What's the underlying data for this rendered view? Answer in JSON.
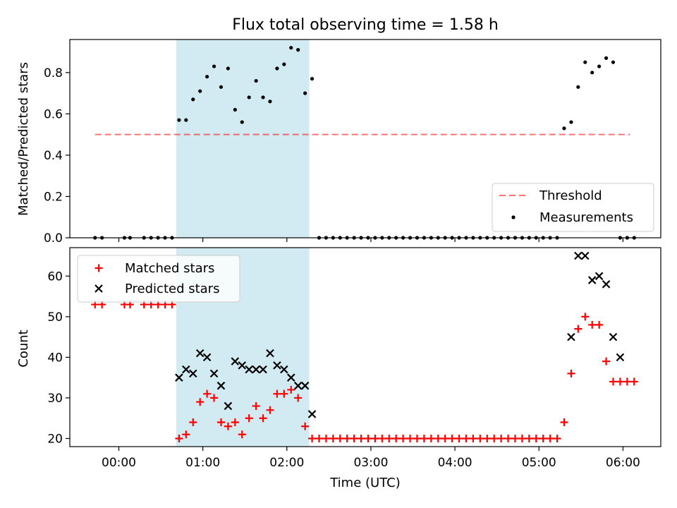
{
  "figure": {
    "title": "Flux total observing time = 1.58 h"
  },
  "colors": {
    "band": "#add8e6",
    "threshold": "#ff0000",
    "measurement": "#000000",
    "matched": "#ff0000",
    "predicted": "#000000"
  },
  "chart_data": [
    {
      "type": "scatter",
      "title": "Flux total observing time = 1.58 h",
      "xlabel": "",
      "ylabel": "Matched/Predicted stars",
      "xlim": [
        "23:25",
        "06:27"
      ],
      "ylim": [
        0,
        0.96
      ],
      "yticks": [
        0.0,
        0.2,
        0.4,
        0.6,
        0.8
      ],
      "xticks": [
        "00:00",
        "01:00",
        "02:00",
        "03:00",
        "04:00",
        "05:00",
        "06:00"
      ],
      "highlight_band": {
        "x_start": "00:41",
        "x_end": "02:16"
      },
      "legend": {
        "position": "lower-right",
        "entries": [
          "Threshold",
          "Measurements"
        ]
      },
      "grid": false,
      "series": [
        {
          "name": "Threshold",
          "style": "dashed-line",
          "x": [
            "23:43",
            "06:05"
          ],
          "y": [
            0.5,
            0.5
          ]
        },
        {
          "name": "Measurements",
          "style": "dot",
          "x": [
            "23:43",
            "23:48",
            "00:04",
            "00:08",
            "00:18",
            "00:23",
            "00:28",
            "00:33",
            "00:38",
            "00:43",
            "00:48",
            "00:53",
            "00:58",
            "01:03",
            "01:08",
            "01:13",
            "01:18",
            "01:23",
            "01:28",
            "01:33",
            "01:38",
            "01:43",
            "01:48",
            "01:53",
            "01:58",
            "02:03",
            "02:08",
            "02:13",
            "02:18",
            "02:23",
            "02:28",
            "02:33",
            "02:38",
            "02:43",
            "02:48",
            "02:53",
            "02:58",
            "03:03",
            "03:08",
            "03:13",
            "03:18",
            "03:23",
            "03:28",
            "03:33",
            "03:38",
            "03:43",
            "03:48",
            "03:53",
            "03:58",
            "04:03",
            "04:08",
            "04:13",
            "04:18",
            "04:23",
            "04:28",
            "04:33",
            "04:38",
            "04:43",
            "04:48",
            "04:53",
            "04:58",
            "05:03",
            "05:08",
            "05:13",
            "05:18",
            "05:23",
            "05:28",
            "05:33",
            "05:38",
            "05:43",
            "05:48",
            "05:53",
            "05:58",
            "06:03",
            "06:08"
          ],
          "y": [
            0,
            0,
            0,
            0,
            0,
            0,
            0,
            0,
            0,
            0.57,
            0.57,
            0.67,
            0.71,
            0.78,
            0.83,
            0.73,
            0.82,
            0.62,
            0.56,
            0.68,
            0.76,
            0.68,
            0.66,
            0.82,
            0.84,
            0.92,
            0.91,
            0.7,
            0.77,
            0,
            0,
            0,
            0,
            0,
            0,
            0,
            0,
            0,
            0,
            0,
            0,
            0,
            0,
            0,
            0,
            0,
            0,
            0,
            0,
            0,
            0,
            0,
            0,
            0,
            0,
            0,
            0,
            0,
            0,
            0,
            0,
            0,
            0,
            0,
            0.53,
            0.56,
            0.73,
            0.85,
            0.8,
            0.83,
            0.87,
            0.85,
            0,
            0,
            0
          ]
        }
      ]
    },
    {
      "type": "scatter",
      "xlabel": "Time (UTC)",
      "ylabel": "Count",
      "xlim": [
        "23:25",
        "06:27"
      ],
      "ylim": [
        18,
        67
      ],
      "yticks": [
        20,
        30,
        40,
        50,
        60
      ],
      "xticks": [
        "00:00",
        "01:00",
        "02:00",
        "03:00",
        "04:00",
        "05:00",
        "06:00"
      ],
      "highlight_band": {
        "x_start": "00:41",
        "x_end": "02:16"
      },
      "legend": {
        "position": "upper-left",
        "entries": [
          "Matched stars",
          "Predicted stars"
        ]
      },
      "grid": false,
      "series": [
        {
          "name": "Matched stars",
          "style": "plus",
          "x": [
            "23:43",
            "23:48",
            "00:04",
            "00:08",
            "00:18",
            "00:23",
            "00:28",
            "00:33",
            "00:38",
            "00:43",
            "00:48",
            "00:53",
            "00:58",
            "01:03",
            "01:08",
            "01:13",
            "01:18",
            "01:23",
            "01:28",
            "01:33",
            "01:38",
            "01:43",
            "01:48",
            "01:53",
            "01:58",
            "02:03",
            "02:08",
            "02:13",
            "02:18",
            "02:23",
            "02:28",
            "02:33",
            "02:38",
            "02:43",
            "02:48",
            "02:53",
            "02:58",
            "03:03",
            "03:08",
            "03:13",
            "03:18",
            "03:23",
            "03:28",
            "03:33",
            "03:38",
            "03:43",
            "03:48",
            "03:53",
            "03:58",
            "04:03",
            "04:08",
            "04:13",
            "04:18",
            "04:23",
            "04:28",
            "04:33",
            "04:38",
            "04:43",
            "04:48",
            "04:53",
            "04:58",
            "05:03",
            "05:08",
            "05:13",
            "05:18",
            "05:23",
            "05:28",
            "05:33",
            "05:38",
            "05:43",
            "05:48",
            "05:53",
            "05:58",
            "06:03",
            "06:08"
          ],
          "y": [
            53,
            53,
            53,
            53,
            53,
            53,
            53,
            53,
            53,
            20,
            21,
            24,
            29,
            31,
            30,
            24,
            23,
            24,
            21,
            25,
            28,
            25,
            27,
            31,
            31,
            32,
            30,
            23,
            20,
            20,
            20,
            20,
            20,
            20,
            20,
            20,
            20,
            20,
            20,
            20,
            20,
            20,
            20,
            20,
            20,
            20,
            20,
            20,
            20,
            20,
            20,
            20,
            20,
            20,
            20,
            20,
            20,
            20,
            20,
            20,
            20,
            20,
            20,
            20,
            24,
            36,
            47,
            50,
            48,
            48,
            39,
            34,
            34,
            34,
            34
          ]
        },
        {
          "name": "Predicted stars",
          "style": "x",
          "x": [
            "00:43",
            "00:48",
            "00:53",
            "00:58",
            "01:03",
            "01:08",
            "01:13",
            "01:18",
            "01:23",
            "01:28",
            "01:33",
            "01:38",
            "01:43",
            "01:48",
            "01:53",
            "01:58",
            "02:03",
            "02:08",
            "02:13",
            "02:18",
            "05:23",
            "05:28",
            "05:33",
            "05:38",
            "05:43",
            "05:48",
            "05:53",
            "05:58"
          ],
          "y": [
            35,
            37,
            36,
            41,
            40,
            36,
            33,
            28,
            39,
            38,
            37,
            37,
            37,
            41,
            38,
            37,
            35,
            33,
            33,
            26,
            45,
            65,
            65,
            59,
            60,
            58,
            45,
            40
          ]
        }
      ]
    }
  ]
}
